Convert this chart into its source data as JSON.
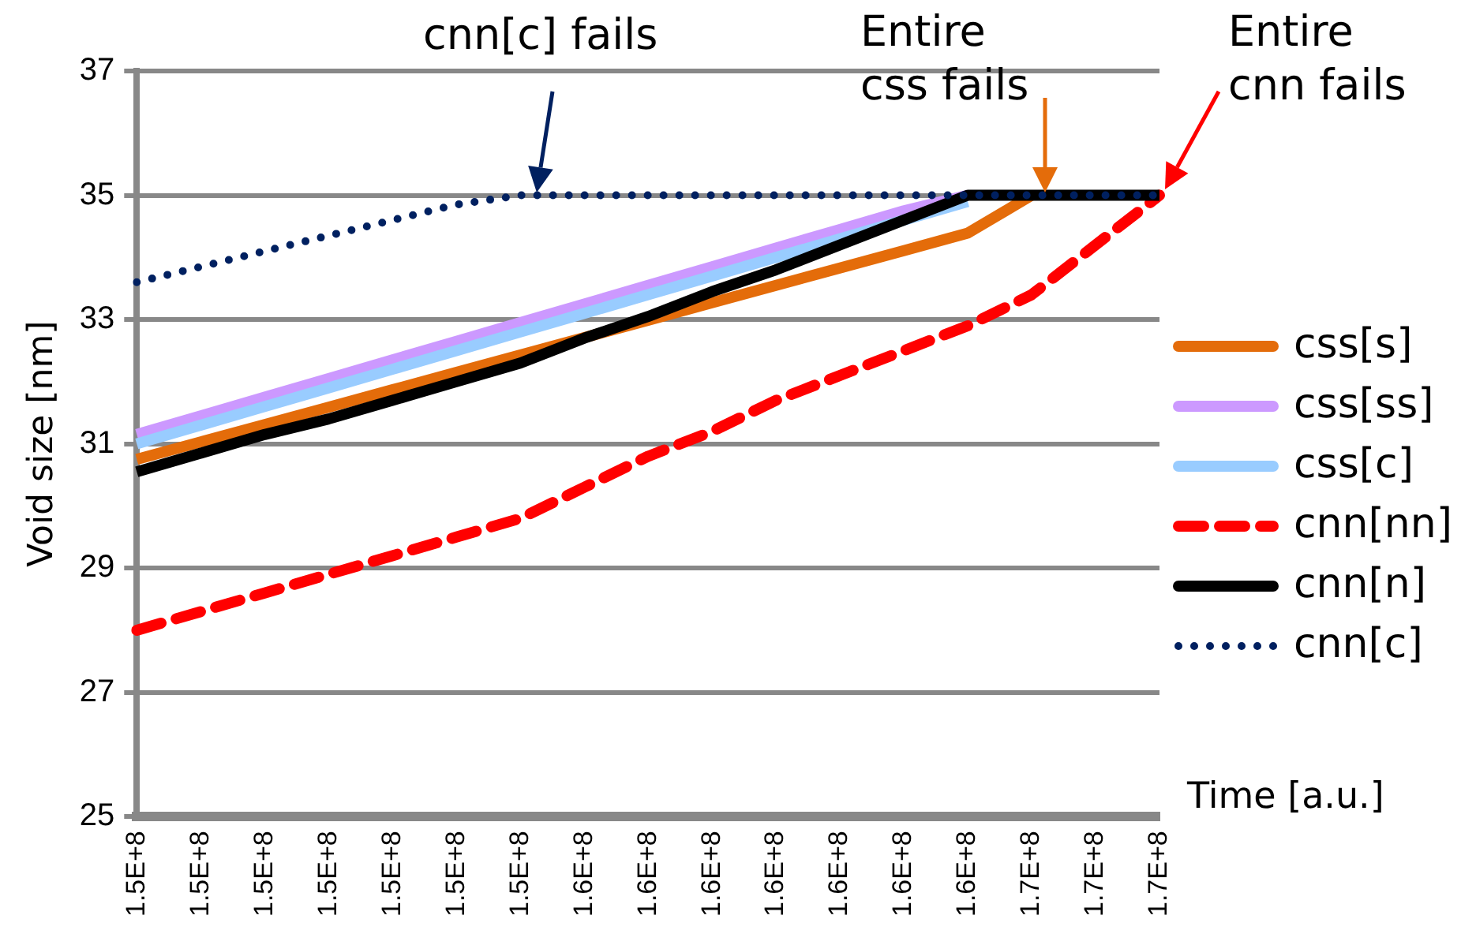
{
  "chart_data": {
    "type": "line",
    "ylabel": "Void size [nm]",
    "xlabel": "Time [a.u.]",
    "categories": [
      "1.5E+8",
      "1.5E+8",
      "1.5E+8",
      "1.5E+8",
      "1.5E+8",
      "1.5E+8",
      "1.5E+8",
      "1.6E+8",
      "1.6E+8",
      "1.6E+8",
      "1.6E+8",
      "1.6E+8",
      "1.6E+8",
      "1.6E+8",
      "1.7E+8",
      "1.7E+8",
      "1.7E+8"
    ],
    "ylim": [
      25,
      37
    ],
    "yticks": [
      25,
      27,
      29,
      31,
      33,
      35,
      37
    ],
    "grid": "y",
    "legend": "right",
    "marker": "none",
    "series": [
      {
        "name": "css[s]",
        "color": "#e46c0a",
        "line_style": "solid",
        "values": [
          30.75,
          31.03,
          31.31,
          31.59,
          31.87,
          32.15,
          32.43,
          32.71,
          32.99,
          33.27,
          33.55,
          33.83,
          34.11,
          34.39,
          35,
          null,
          null
        ]
      },
      {
        "name": "css[ss]",
        "color": "#cc99ff",
        "line_style": "solid",
        "values": [
          31.15,
          31.45,
          31.75,
          32.05,
          32.35,
          32.65,
          32.95,
          33.25,
          33.55,
          33.85,
          34.15,
          34.45,
          34.75,
          35,
          null,
          null,
          null
        ]
      },
      {
        "name": "css[c]",
        "color": "#99ccff",
        "line_style": "solid",
        "values": [
          31.0,
          31.3,
          31.6,
          31.9,
          32.2,
          32.5,
          32.8,
          33.1,
          33.4,
          33.7,
          34.0,
          34.3,
          34.6,
          34.9,
          null,
          null,
          null
        ]
      },
      {
        "name": "cnn[nn]",
        "color": "#ff0000",
        "line_style": "dashed",
        "values": [
          28.0,
          28.3,
          28.6,
          28.9,
          29.2,
          29.5,
          29.8,
          30.3,
          30.8,
          31.2,
          31.7,
          32.1,
          32.5,
          32.9,
          33.4,
          34.2,
          35
        ]
      },
      {
        "name": "cnn[n]",
        "color": "#000000",
        "line_style": "solid",
        "values": [
          30.55,
          30.85,
          31.15,
          31.4,
          31.7,
          32.0,
          32.3,
          32.7,
          33.05,
          33.45,
          33.8,
          34.2,
          34.6,
          35,
          35,
          35,
          35
        ]
      },
      {
        "name": "cnn[c]",
        "color": "#002060",
        "line_style": "dotted",
        "values": [
          33.6,
          33.85,
          34.1,
          34.35,
          34.6,
          34.85,
          35,
          35,
          35,
          35,
          35,
          35,
          35,
          35,
          35,
          35,
          35
        ]
      }
    ],
    "annotations": [
      "cnn[c] fails",
      "Entire css fails",
      "Entire cnn fails"
    ]
  }
}
